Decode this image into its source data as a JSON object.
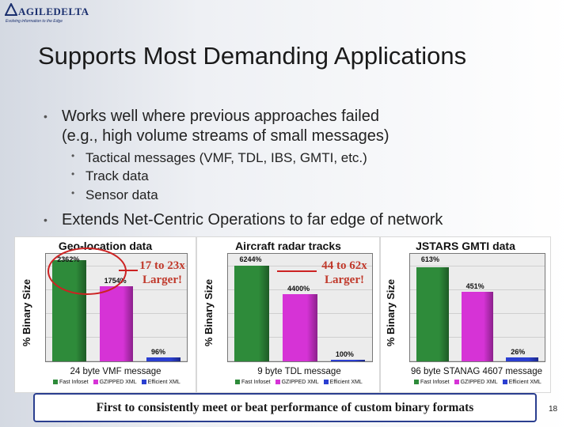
{
  "logo": {
    "name": "AGILEDELTA",
    "tagline": "Evolving information to the Edge"
  },
  "title": "Supports Most Demanding Applications",
  "bullets": {
    "b1_line1": "Works well where previous approaches failed",
    "b1_line2": "(e.g., high volume streams of small messages)",
    "subs": [
      "Tactical messages (VMF, TDL, IBS, GMTI, etc.)",
      "Track data",
      "Sensor data"
    ],
    "b2": "Extends Net-Centric Operations to far edge of network"
  },
  "colors": {
    "fast_infoset": "#2e8b3a",
    "gzipped_xml": "#d633d6",
    "efficient_xml": "#2b3fd1",
    "note_red": "#c0392b"
  },
  "legend": [
    "Fast Infoset",
    "GZIPPED XML",
    "Efficient XML"
  ],
  "chart_data": [
    {
      "type": "bar",
      "title": "Geo-location data",
      "ylabel": "% Binary Size",
      "xlabel": "24 byte VMF message",
      "categories": [
        "Fast Infoset",
        "GZIPPED XML",
        "Efficient XML"
      ],
      "values": [
        2362,
        1754,
        96
      ],
      "value_labels": [
        "2362%",
        "1754%",
        "96%"
      ],
      "ylim": [
        0,
        2500
      ],
      "annotation": [
        "17 to 23x",
        "Larger!"
      ]
    },
    {
      "type": "bar",
      "title": "Aircraft radar tracks",
      "ylabel": "% Binary Size",
      "xlabel": "9 byte TDL message",
      "categories": [
        "Fast Infoset",
        "GZIPPED XML",
        "Efficient XML"
      ],
      "values": [
        6244,
        4400,
        100
      ],
      "value_labels": [
        "6244%",
        "4400%",
        "100%"
      ],
      "ylim": [
        0,
        7000
      ],
      "annotation": [
        "44 to 62x",
        "Larger!"
      ]
    },
    {
      "type": "bar",
      "title": "JSTARS GMTI data",
      "ylabel": "% Binary Size",
      "xlabel": "96 byte STANAG 4607 message",
      "categories": [
        "Fast Infoset",
        "GZIPPED XML",
        "Efficient XML"
      ],
      "values": [
        613,
        451,
        26
      ],
      "value_labels": [
        "613%",
        "451%",
        "26%"
      ],
      "ylim": [
        0,
        700
      ]
    }
  ],
  "footer": "First to consistently meet or beat performance of custom binary formats",
  "page_number": "18"
}
